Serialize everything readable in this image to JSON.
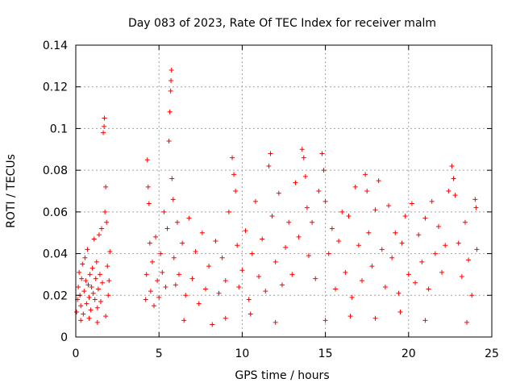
{
  "chart_data": {
    "type": "scatter",
    "title": "Day 083 of 2023, Rate Of TEC Index for receiver malm",
    "xlabel": "GPS time / hours",
    "ylabel": "ROTI / TECUs",
    "xlim": [
      0,
      25
    ],
    "ylim": [
      0,
      0.14
    ],
    "x_ticks": [
      0,
      5,
      10,
      15,
      20,
      25
    ],
    "x_tick_labels": [
      "0",
      "5",
      "10",
      "15",
      "20",
      "25"
    ],
    "y_ticks": [
      0,
      0.02,
      0.04,
      0.06,
      0.08,
      0.1,
      0.12,
      0.14
    ],
    "y_tick_labels": [
      "0",
      "0.02",
      "0.04",
      "0.06",
      "0.08",
      "0.1",
      "0.12",
      "0.14"
    ],
    "grid": true,
    "marker": "plus",
    "color": "#ff0000",
    "series": [
      {
        "points": [
          [
            0.05,
            0.012
          ],
          [
            0.1,
            0.018
          ],
          [
            0.15,
            0.024
          ],
          [
            0.2,
            0.031
          ],
          [
            0.25,
            0.02
          ],
          [
            0.3,
            0.015
          ],
          [
            0.35,
            0.028
          ],
          [
            0.4,
            0.035
          ],
          [
            0.45,
            0.011
          ],
          [
            0.5,
            0.022
          ],
          [
            0.55,
            0.038
          ],
          [
            0.6,
            0.027
          ],
          [
            0.65,
            0.016
          ],
          [
            0.7,
            0.042
          ],
          [
            0.75,
            0.025
          ],
          [
            0.8,
            0.019
          ],
          [
            0.85,
            0.03
          ],
          [
            0.9,
            0.013
          ],
          [
            0.95,
            0.024
          ],
          [
            1.0,
            0.033
          ],
          [
            1.05,
            0.021
          ],
          [
            1.1,
            0.047
          ],
          [
            1.15,
            0.018
          ],
          [
            1.2,
            0.028
          ],
          [
            1.25,
            0.036
          ],
          [
            1.3,
            0.014
          ],
          [
            1.35,
            0.023
          ],
          [
            1.4,
            0.049
          ],
          [
            1.45,
            0.03
          ],
          [
            1.5,
            0.017
          ],
          [
            1.55,
            0.052
          ],
          [
            1.6,
            0.026
          ],
          [
            1.65,
            0.098
          ],
          [
            1.7,
            0.101
          ],
          [
            1.72,
            0.105
          ],
          [
            1.75,
            0.06
          ],
          [
            1.8,
            0.072
          ],
          [
            1.85,
            0.055
          ],
          [
            1.9,
            0.034
          ],
          [
            1.95,
            0.02
          ],
          [
            2.0,
            0.027
          ],
          [
            2.05,
            0.041
          ],
          [
            0.3,
            0.008
          ],
          [
            0.8,
            0.009
          ],
          [
            1.3,
            0.007
          ],
          [
            1.8,
            0.01
          ],
          [
            4.2,
            0.018
          ],
          [
            4.25,
            0.03
          ],
          [
            4.3,
            0.085
          ],
          [
            4.35,
            0.072
          ],
          [
            4.4,
            0.064
          ],
          [
            4.45,
            0.045
          ],
          [
            4.5,
            0.022
          ],
          [
            4.6,
            0.036
          ],
          [
            4.7,
            0.015
          ],
          [
            4.8,
            0.048
          ],
          [
            4.9,
            0.027
          ],
          [
            5.0,
            0.019
          ],
          [
            5.1,
            0.04
          ],
          [
            5.2,
            0.031
          ],
          [
            5.3,
            0.06
          ],
          [
            5.4,
            0.024
          ],
          [
            5.5,
            0.052
          ],
          [
            5.6,
            0.094
          ],
          [
            5.65,
            0.108
          ],
          [
            5.7,
            0.118
          ],
          [
            5.72,
            0.123
          ],
          [
            5.75,
            0.128
          ],
          [
            5.78,
            0.076
          ],
          [
            5.85,
            0.066
          ],
          [
            5.9,
            0.038
          ],
          [
            6.0,
            0.025
          ],
          [
            6.1,
            0.055
          ],
          [
            6.2,
            0.03
          ],
          [
            6.4,
            0.045
          ],
          [
            6.6,
            0.02
          ],
          [
            6.8,
            0.057
          ],
          [
            7.0,
            0.028
          ],
          [
            7.2,
            0.041
          ],
          [
            7.4,
            0.016
          ],
          [
            7.6,
            0.05
          ],
          [
            7.8,
            0.023
          ],
          [
            8.0,
            0.034
          ],
          [
            8.2,
            0.006
          ],
          [
            8.4,
            0.046
          ],
          [
            8.6,
            0.021
          ],
          [
            8.8,
            0.038
          ],
          [
            9.0,
            0.027
          ],
          [
            9.2,
            0.06
          ],
          [
            9.4,
            0.086
          ],
          [
            9.5,
            0.078
          ],
          [
            9.6,
            0.07
          ],
          [
            9.7,
            0.044
          ],
          [
            9.8,
            0.024
          ],
          [
            10.0,
            0.032
          ],
          [
            10.2,
            0.051
          ],
          [
            10.4,
            0.018
          ],
          [
            10.6,
            0.04
          ],
          [
            10.8,
            0.065
          ],
          [
            11.0,
            0.029
          ],
          [
            11.2,
            0.047
          ],
          [
            11.4,
            0.022
          ],
          [
            11.6,
            0.082
          ],
          [
            11.7,
            0.088
          ],
          [
            11.8,
            0.058
          ],
          [
            12.0,
            0.036
          ],
          [
            12.2,
            0.069
          ],
          [
            12.4,
            0.025
          ],
          [
            12.6,
            0.043
          ],
          [
            12.8,
            0.055
          ],
          [
            13.0,
            0.03
          ],
          [
            13.2,
            0.074
          ],
          [
            13.4,
            0.048
          ],
          [
            13.6,
            0.09
          ],
          [
            13.7,
            0.086
          ],
          [
            13.8,
            0.077
          ],
          [
            13.9,
            0.062
          ],
          [
            14.0,
            0.039
          ],
          [
            14.2,
            0.055
          ],
          [
            14.4,
            0.028
          ],
          [
            14.6,
            0.07
          ],
          [
            14.8,
            0.088
          ],
          [
            14.9,
            0.08
          ],
          [
            15.0,
            0.065
          ],
          [
            15.2,
            0.04
          ],
          [
            15.4,
            0.052
          ],
          [
            15.6,
            0.023
          ],
          [
            15.8,
            0.046
          ],
          [
            16.0,
            0.06
          ],
          [
            16.2,
            0.031
          ],
          [
            16.4,
            0.058
          ],
          [
            16.6,
            0.019
          ],
          [
            16.8,
            0.072
          ],
          [
            17.0,
            0.044
          ],
          [
            17.2,
            0.027
          ],
          [
            17.4,
            0.078
          ],
          [
            17.5,
            0.07
          ],
          [
            17.6,
            0.05
          ],
          [
            17.8,
            0.034
          ],
          [
            18.0,
            0.061
          ],
          [
            18.2,
            0.075
          ],
          [
            18.4,
            0.042
          ],
          [
            18.6,
            0.024
          ],
          [
            18.8,
            0.063
          ],
          [
            19.0,
            0.038
          ],
          [
            19.2,
            0.05
          ],
          [
            19.4,
            0.021
          ],
          [
            19.6,
            0.045
          ],
          [
            19.8,
            0.058
          ],
          [
            20.0,
            0.03
          ],
          [
            20.2,
            0.064
          ],
          [
            20.4,
            0.026
          ],
          [
            20.6,
            0.049
          ],
          [
            20.8,
            0.036
          ],
          [
            21.0,
            0.057
          ],
          [
            21.2,
            0.023
          ],
          [
            21.4,
            0.065
          ],
          [
            21.6,
            0.04
          ],
          [
            21.8,
            0.053
          ],
          [
            22.0,
            0.031
          ],
          [
            22.2,
            0.044
          ],
          [
            22.4,
            0.07
          ],
          [
            22.6,
            0.082
          ],
          [
            22.7,
            0.076
          ],
          [
            22.8,
            0.068
          ],
          [
            23.0,
            0.045
          ],
          [
            23.2,
            0.029
          ],
          [
            23.4,
            0.055
          ],
          [
            23.6,
            0.037
          ],
          [
            23.8,
            0.02
          ],
          [
            24.0,
            0.066
          ],
          [
            24.05,
            0.062
          ],
          [
            24.1,
            0.042
          ],
          [
            6.5,
            0.008
          ],
          [
            9.0,
            0.009
          ],
          [
            12.0,
            0.007
          ],
          [
            15.0,
            0.008
          ],
          [
            18.0,
            0.009
          ],
          [
            21.0,
            0.008
          ],
          [
            23.5,
            0.007
          ],
          [
            10.5,
            0.011
          ],
          [
            16.5,
            0.01
          ],
          [
            19.5,
            0.012
          ]
        ]
      }
    ]
  }
}
